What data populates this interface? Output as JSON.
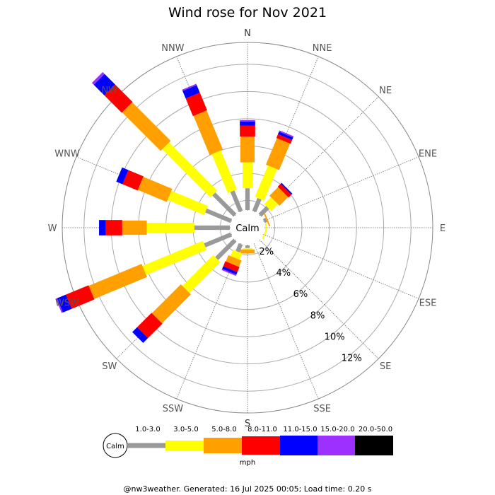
{
  "chart_data": {
    "type": "wind-rose",
    "title": "Wind rose for Nov 2021",
    "directions": [
      "N",
      "NNE",
      "NE",
      "ENE",
      "E",
      "ESE",
      "SE",
      "SSE",
      "S",
      "SSW",
      "SW",
      "WSW",
      "W",
      "WNW",
      "NW",
      "NNW"
    ],
    "radial_ticks": [
      "2%",
      "4%",
      "6%",
      "8%",
      "10%",
      "12%"
    ],
    "radial_values": [
      2,
      4,
      6,
      8,
      10,
      12
    ],
    "rmax_percent": 13.6,
    "center_label": "Calm",
    "speed_bins": [
      {
        "label": "1.0-3.0",
        "color": "#999999"
      },
      {
        "label": "3.0-5.0",
        "color": "#ffff00"
      },
      {
        "label": "5.0-8.0",
        "color": "#ff9f00"
      },
      {
        "label": "8.0-11.0",
        "color": "#ff0000"
      },
      {
        "label": "11.0-15.0",
        "color": "#0000ff"
      },
      {
        "label": "15.0-20.0",
        "color": "#9b30ff"
      },
      {
        "label": "20.0-50.0",
        "color": "#000000"
      }
    ],
    "units": "mph",
    "series": [
      [
        1.6,
        1.9,
        1.9,
        0.8,
        0.3,
        0.1,
        0.0
      ],
      [
        1.0,
        2.5,
        2.1,
        0.3,
        0.2,
        0.1,
        0.0
      ],
      [
        0.8,
        0.7,
        0.9,
        0.3,
        0.1,
        0.0,
        0.0
      ],
      [
        0.2,
        0.0,
        0.1,
        0.0,
        0.0,
        0.0,
        0.0
      ],
      [
        0.0,
        0.1,
        0.0,
        0.0,
        0.0,
        0.0,
        0.0
      ],
      [
        0.0,
        0.1,
        0.0,
        0.0,
        0.0,
        0.0,
        0.0
      ],
      [
        0.0,
        0.0,
        0.0,
        0.0,
        0.0,
        0.0,
        0.0
      ],
      [
        0.0,
        0.0,
        0.0,
        0.0,
        0.0,
        0.0,
        0.0
      ],
      [
        0.2,
        0.1,
        0.3,
        0.0,
        0.0,
        0.0,
        0.0
      ],
      [
        0.6,
        0.5,
        0.5,
        0.4,
        0.2,
        0.1,
        0.0
      ],
      [
        1.9,
        3.2,
        3.0,
        1.5,
        0.5,
        0.0,
        0.0
      ],
      [
        2.1,
        4.8,
        4.2,
        1.8,
        0.7,
        0.1,
        0.0
      ],
      [
        2.6,
        3.5,
        1.8,
        1.2,
        0.5,
        0.0,
        0.0
      ],
      [
        2.0,
        2.9,
        2.3,
        1.2,
        0.5,
        0.0,
        0.0
      ],
      [
        2.2,
        5.0,
        4.0,
        1.8,
        1.1,
        0.2,
        0.0
      ],
      [
        1.6,
        3.1,
        3.1,
        1.4,
        0.6,
        0.1,
        0.0
      ]
    ]
  },
  "footer": "@nw3weather. Generated: 16 Jul 2025 00:05; Load time: 0.20 s"
}
